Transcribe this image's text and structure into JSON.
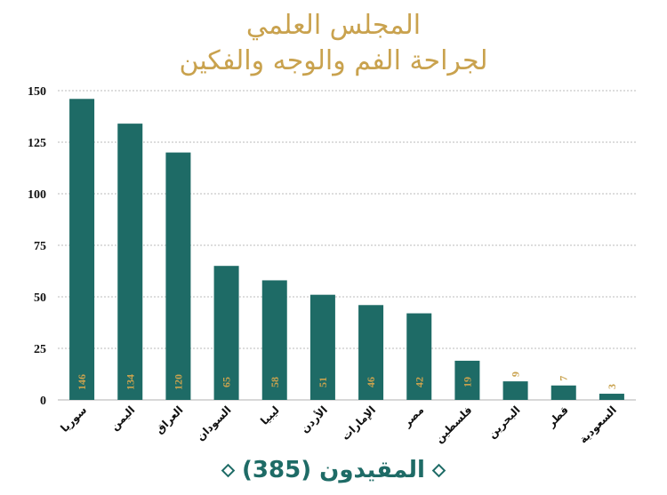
{
  "header": {
    "line1": "المجلس العلمي",
    "line2": "لجراحة الفم والوجه والفكين"
  },
  "footer": {
    "text": "المقيدون (385)"
  },
  "colors": {
    "bar": "#1e6b66",
    "gold": "#c9a24e"
  },
  "chart_data": {
    "type": "bar",
    "categories": [
      "سوريا",
      "اليمن",
      "العراق",
      "السودان",
      "ليبيا",
      "الأردن",
      "الإمارات",
      "مصر",
      "فلسطين",
      "البحرين",
      "قطر",
      "السعودية"
    ],
    "values": [
      146,
      134,
      120,
      65,
      58,
      51,
      46,
      42,
      19,
      9,
      7,
      3
    ],
    "yticks": [
      0,
      25,
      50,
      75,
      100,
      125,
      150
    ],
    "ylim": [
      0,
      150
    ],
    "grid": true,
    "title": "المجلس العلمي لجراحة الفم والوجه والفكين",
    "xlabel": "",
    "ylabel": ""
  }
}
